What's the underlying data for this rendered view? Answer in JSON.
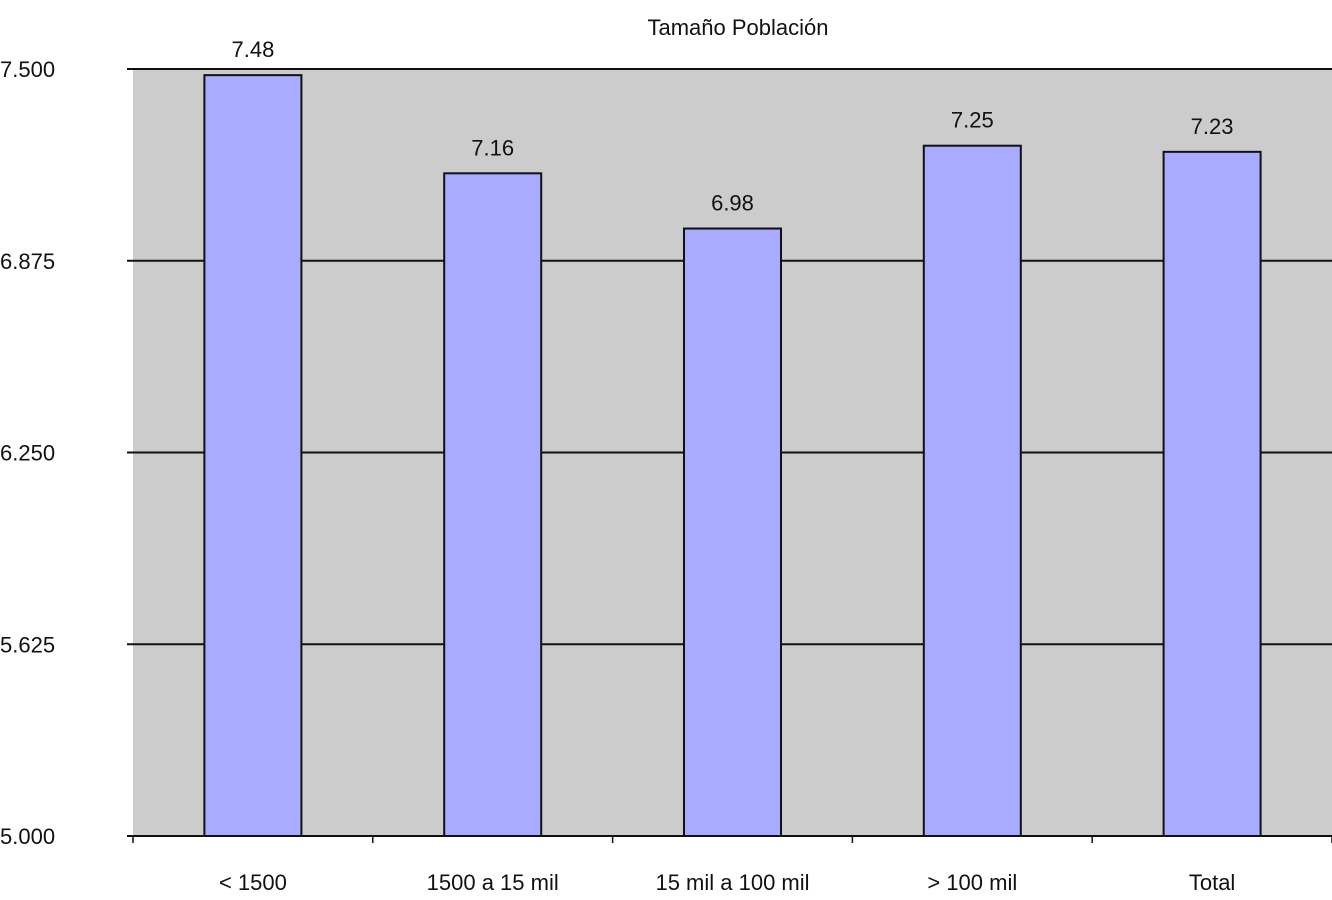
{
  "chart_data": {
    "type": "bar",
    "title": "Tamaño Población",
    "xlabel": "",
    "ylabel": "",
    "categories": [
      "< 1500",
      "1500 a 15 mil",
      "15 mil a 100 mil",
      "> 100 mil",
      "Total"
    ],
    "values": [
      7.48,
      7.16,
      6.98,
      7.25,
      7.23
    ],
    "data_labels": [
      "7.48",
      "7.16",
      "6.98",
      "7.25",
      "7.23"
    ],
    "ylim": [
      5.0,
      7.5
    ],
    "yticks": [
      5.0,
      5.625,
      6.25,
      6.875,
      7.5
    ],
    "ytick_labels": [
      "5.000",
      "5.625",
      "6.250",
      "6.875",
      "7.500"
    ],
    "grid": true,
    "legend": "none",
    "colors": {
      "bar_fill": "#a8abff",
      "bar_stroke": "#111111",
      "plot_background": "#cccccc",
      "grid": "#111111",
      "page_background": "#ffffff"
    }
  }
}
